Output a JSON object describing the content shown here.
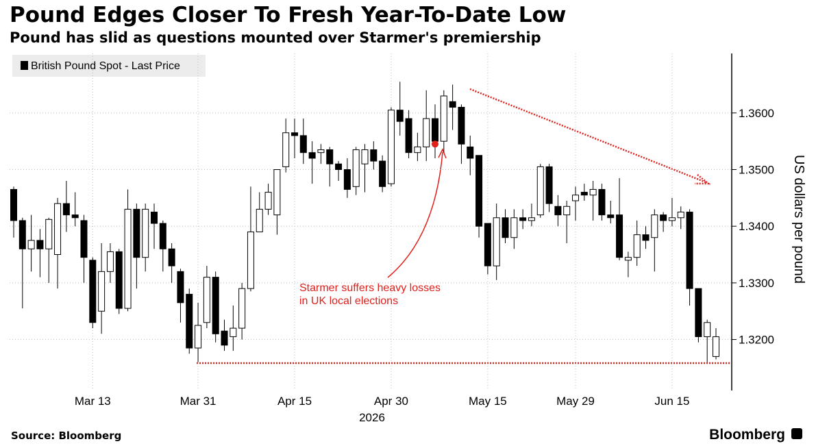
{
  "chart_data": {
    "type": "candlestick",
    "title": "Pound Edges Closer To Fresh Year-To-Date Low",
    "subtitle": "Pound has slid as questions mounted over Starmer's premiership",
    "y_label": "US dollars per pound",
    "x_year_label": "2026",
    "source": "Source: Bloomberg",
    "logo": "Bloomberg",
    "grid": true,
    "x": [
      "2026-03-02",
      "2026-03-03",
      "2026-03-04",
      "2026-03-05",
      "2026-03-06",
      "2026-03-09",
      "2026-03-10",
      "2026-03-11",
      "2026-03-12",
      "2026-03-13",
      "2026-03-16",
      "2026-03-17",
      "2026-03-18",
      "2026-03-19",
      "2026-03-20",
      "2026-03-23",
      "2026-03-24",
      "2026-03-25",
      "2026-03-26",
      "2026-03-27",
      "2026-03-30",
      "2026-03-31",
      "2026-04-01",
      "2026-04-02",
      "2026-04-03",
      "2026-04-06",
      "2026-04-07",
      "2026-04-08",
      "2026-04-09",
      "2026-04-10",
      "2026-04-13",
      "2026-04-14",
      "2026-04-15",
      "2026-04-16",
      "2026-04-17",
      "2026-04-20",
      "2026-04-21",
      "2026-04-22",
      "2026-04-23",
      "2026-04-24",
      "2026-04-27",
      "2026-04-28",
      "2026-04-29",
      "2026-04-30",
      "2026-05-01",
      "2026-05-04",
      "2026-05-05",
      "2026-05-06",
      "2026-05-07",
      "2026-05-08",
      "2026-05-11",
      "2026-05-12",
      "2026-05-13",
      "2026-05-14",
      "2026-05-15",
      "2026-05-18",
      "2026-05-19",
      "2026-05-20",
      "2026-05-21",
      "2026-05-22",
      "2026-05-25",
      "2026-05-26",
      "2026-05-27",
      "2026-05-28",
      "2026-05-29",
      "2026-06-01",
      "2026-06-02",
      "2026-06-03",
      "2026-06-04",
      "2026-06-05",
      "2026-06-08",
      "2026-06-09",
      "2026-06-10",
      "2026-06-11",
      "2026-06-12",
      "2026-06-15",
      "2026-06-16",
      "2026-06-17",
      "2026-06-18",
      "2026-06-19",
      "2026-06-22"
    ],
    "series": [
      {
        "name": "British Pound Spot - Last Price",
        "open": [
          1.3465,
          1.341,
          1.336,
          1.3375,
          1.336,
          1.335,
          1.344,
          1.342,
          1.341,
          1.334,
          1.325,
          1.332,
          1.3355,
          1.3255,
          1.343,
          1.3345,
          1.3425,
          1.3405,
          1.336,
          1.332,
          1.328,
          1.3185,
          1.323,
          1.331,
          1.3215,
          1.3205,
          1.322,
          1.329,
          1.339,
          1.343,
          1.342,
          1.3505,
          1.3565,
          1.356,
          1.353,
          1.353,
          1.3535,
          1.351,
          1.35,
          1.347,
          1.351,
          1.3535,
          1.3515,
          1.3475,
          1.3605,
          1.359,
          1.353,
          1.354,
          1.359,
          1.355,
          1.362,
          1.361,
          1.354,
          1.3525,
          1.3405,
          1.333,
          1.3415,
          1.338,
          1.3415,
          1.341,
          1.342,
          1.3505,
          1.3435,
          1.342,
          1.3445,
          1.346,
          1.3455,
          1.3465,
          1.342,
          1.342,
          1.334,
          1.3345,
          1.3385,
          1.338,
          1.342,
          1.341,
          1.3415,
          1.3425,
          1.329,
          1.3205,
          1.317
        ],
        "high": [
          1.347,
          1.3415,
          1.342,
          1.3395,
          1.3415,
          1.345,
          1.348,
          1.346,
          1.342,
          1.3345,
          1.337,
          1.337,
          1.336,
          1.3465,
          1.344,
          1.344,
          1.344,
          1.341,
          1.337,
          1.3325,
          1.329,
          1.3265,
          1.333,
          1.332,
          1.3235,
          1.326,
          1.33,
          1.347,
          1.346,
          1.3475,
          1.35,
          1.359,
          1.359,
          1.359,
          1.355,
          1.3545,
          1.354,
          1.3515,
          1.352,
          1.354,
          1.3545,
          1.355,
          1.3525,
          1.361,
          1.3655,
          1.3605,
          1.3565,
          1.364,
          1.3615,
          1.364,
          1.365,
          1.3615,
          1.356,
          1.3525,
          1.3405,
          1.344,
          1.343,
          1.343,
          1.343,
          1.344,
          1.351,
          1.351,
          1.3455,
          1.3445,
          1.347,
          1.3475,
          1.348,
          1.3475,
          1.3445,
          1.3485,
          1.3355,
          1.341,
          1.34,
          1.343,
          1.3425,
          1.345,
          1.3435,
          1.343,
          1.329,
          1.3235,
          1.322
        ],
        "low": [
          1.338,
          1.3255,
          1.332,
          1.331,
          1.33,
          1.329,
          1.339,
          1.34,
          1.33,
          1.322,
          1.321,
          1.33,
          1.3245,
          1.325,
          1.329,
          1.332,
          1.336,
          1.332,
          1.33,
          1.323,
          1.3175,
          1.316,
          1.322,
          1.3195,
          1.318,
          1.318,
          1.32,
          1.3285,
          1.339,
          1.342,
          1.3385,
          1.3495,
          1.352,
          1.351,
          1.3475,
          1.351,
          1.347,
          1.348,
          1.345,
          1.3455,
          1.346,
          1.35,
          1.346,
          1.347,
          1.356,
          1.352,
          1.3515,
          1.3515,
          1.352,
          1.353,
          1.357,
          1.351,
          1.349,
          1.338,
          1.3315,
          1.3305,
          1.337,
          1.336,
          1.3395,
          1.34,
          1.3415,
          1.3425,
          1.34,
          1.337,
          1.341,
          1.3445,
          1.341,
          1.341,
          1.3405,
          1.334,
          1.331,
          1.333,
          1.336,
          1.332,
          1.339,
          1.34,
          1.3395,
          1.326,
          1.3195,
          1.316,
          1.3165
        ],
        "close": [
          1.341,
          1.336,
          1.3375,
          1.336,
          1.3412,
          1.344,
          1.342,
          1.3415,
          1.3345,
          1.323,
          1.332,
          1.3355,
          1.3255,
          1.343,
          1.3345,
          1.343,
          1.3405,
          1.336,
          1.333,
          1.3265,
          1.3185,
          1.3225,
          1.331,
          1.321,
          1.319,
          1.322,
          1.329,
          1.339,
          1.343,
          1.346,
          1.35,
          1.3565,
          1.356,
          1.353,
          1.352,
          1.3535,
          1.351,
          1.35,
          1.3465,
          1.3535,
          1.3535,
          1.3515,
          1.347,
          1.3605,
          1.3585,
          1.353,
          1.354,
          1.359,
          1.355,
          1.363,
          1.361,
          1.3545,
          1.352,
          1.34,
          1.333,
          1.3415,
          1.338,
          1.3415,
          1.341,
          1.3415,
          1.3505,
          1.344,
          1.342,
          1.3435,
          1.3455,
          1.3455,
          1.3465,
          1.342,
          1.3415,
          1.3345,
          1.3345,
          1.3385,
          1.3375,
          1.342,
          1.341,
          1.3415,
          1.3425,
          1.329,
          1.3205,
          1.323,
          1.3205
        ]
      }
    ],
    "ylim": [
      1.311,
      1.3705
    ],
    "yticks": [
      {
        "value": 1.32,
        "label": "1.3200"
      },
      {
        "value": 1.33,
        "label": "1.3300"
      },
      {
        "value": 1.34,
        "label": "1.3400"
      },
      {
        "value": 1.35,
        "label": "1.3500"
      },
      {
        "value": 1.36,
        "label": "1.3600"
      }
    ],
    "xticks": [
      {
        "value": "2026-03-13",
        "label": "Mar 13"
      },
      {
        "value": "2026-03-31",
        "label": "Mar 31"
      },
      {
        "value": "2026-04-15",
        "label": "Apr 15"
      },
      {
        "value": "2026-04-30",
        "label": "Apr 30"
      },
      {
        "value": "2026-05-15",
        "label": "May 15"
      },
      {
        "value": "2026-05-29",
        "label": "May 29"
      },
      {
        "value": "2026-06-15",
        "label": "Jun 15"
      }
    ],
    "annotation": {
      "text_lines": [
        "Starmer suffers heavy losses",
        "in UK local elections"
      ],
      "x": "2026-05-07",
      "y": 1.3545,
      "color": "#e0201b"
    }
  }
}
